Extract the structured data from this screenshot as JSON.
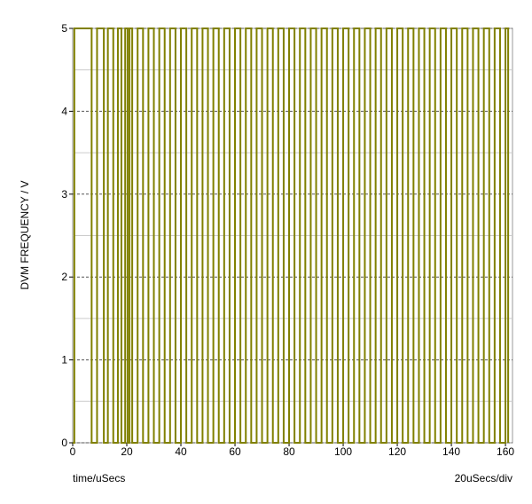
{
  "chart_data": {
    "type": "line",
    "step": true,
    "y_label": "DVM FREQUENCY / V",
    "x_label": "time/uSecs",
    "annotation": "20uSecs/div",
    "xlim": [
      0,
      162.6
    ],
    "ylim": [
      0,
      5
    ],
    "xticks": [
      0,
      20,
      40,
      60,
      80,
      100,
      120,
      140,
      160
    ],
    "yticks": [
      0,
      1,
      2,
      3,
      4,
      5
    ],
    "grid": true,
    "series": [
      {
        "color": "#808000",
        "x": [
          0,
          0.6,
          7,
          9,
          11.5,
          13,
          15,
          16.7,
          18,
          19.4,
          20.3,
          21,
          22,
          24,
          26,
          28,
          30,
          32,
          34,
          36,
          38,
          40,
          42,
          44,
          46,
          48,
          50,
          52,
          54,
          56,
          58,
          60,
          62,
          64,
          66,
          68,
          70,
          72,
          74,
          76,
          78,
          80,
          82,
          84,
          86,
          88,
          90,
          92,
          94,
          96,
          98,
          100,
          102,
          104,
          106,
          108,
          110,
          112,
          114,
          116,
          118,
          120,
          122,
          124,
          126,
          128,
          130,
          132,
          134,
          136,
          138,
          140,
          142,
          144,
          146,
          148,
          150,
          152,
          154,
          156,
          158,
          160,
          161
        ],
        "values": [
          0,
          5,
          0,
          5,
          0,
          5,
          0,
          5,
          0,
          5,
          0,
          5,
          0,
          5,
          0,
          5,
          0,
          5,
          0,
          5,
          0,
          5,
          0,
          5,
          0,
          5,
          0,
          5,
          0,
          5,
          0,
          5,
          0,
          5,
          0,
          5,
          0,
          5,
          0,
          5,
          0,
          5,
          0,
          5,
          0,
          5,
          0,
          5,
          0,
          5,
          0,
          5,
          0,
          5,
          0,
          5,
          0,
          5,
          0,
          5,
          0,
          5,
          0,
          5,
          0,
          5,
          0,
          5,
          0,
          5,
          0,
          5,
          0,
          5,
          0,
          5,
          0,
          5,
          0,
          5,
          0,
          5,
          0
        ]
      }
    ]
  }
}
